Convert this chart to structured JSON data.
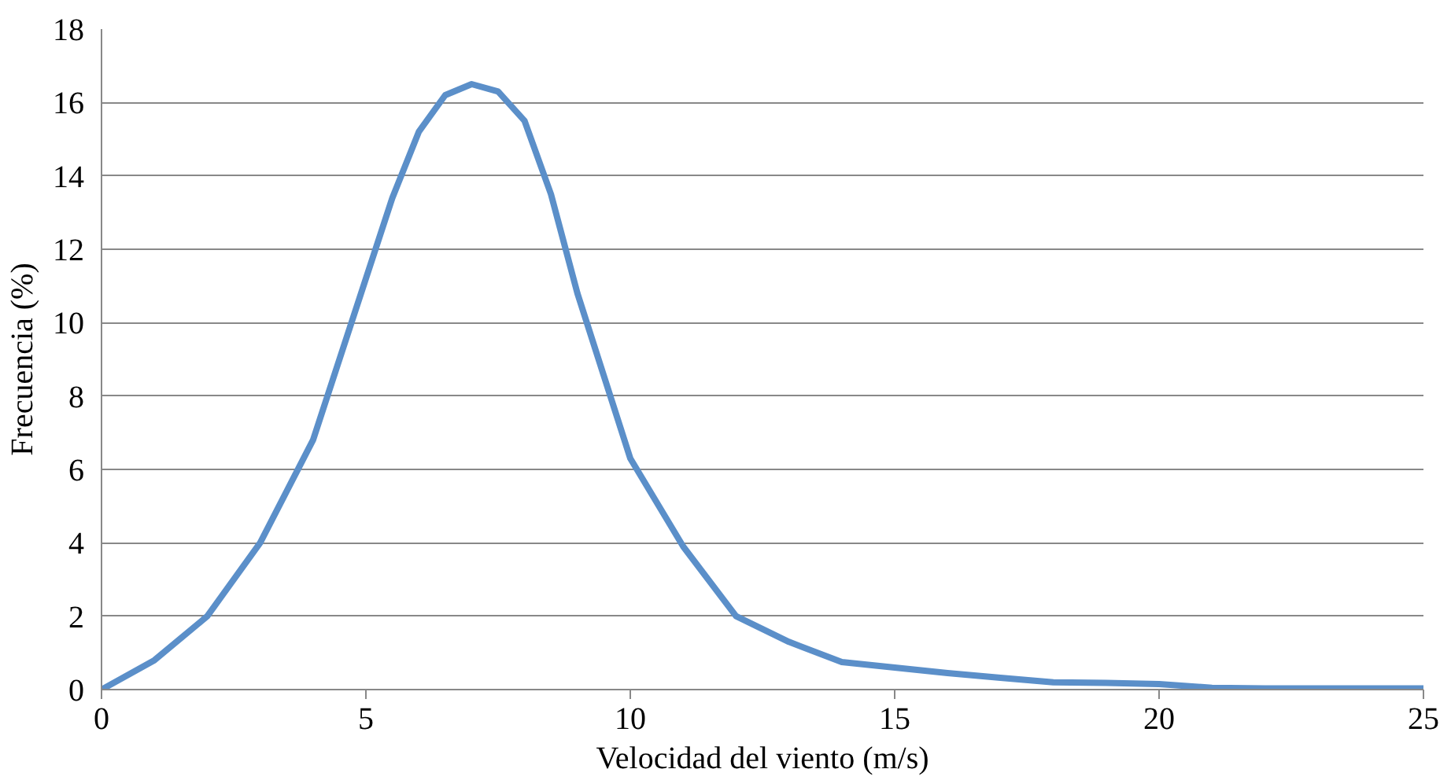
{
  "chart_data": {
    "type": "line",
    "xlabel": "Velocidad del viento (m/s)",
    "ylabel": "Frecuencia (%)",
    "x": [
      0,
      1,
      2,
      3,
      4,
      5,
      5.5,
      6,
      6.5,
      7,
      7.5,
      8,
      8.5,
      9,
      10,
      11,
      12,
      13,
      14,
      15,
      16,
      17,
      18,
      19,
      20,
      21,
      22,
      23,
      24,
      25
    ],
    "series": [
      {
        "color": "#5b8fc9",
        "values": [
          0,
          0.8,
          2.0,
          4.0,
          6.8,
          11.2,
          13.4,
          15.2,
          16.2,
          16.5,
          16.3,
          15.5,
          13.5,
          10.8,
          6.3,
          3.9,
          2.0,
          1.3,
          0.75,
          0.6,
          0.45,
          0.32,
          0.2,
          0.18,
          0.15,
          0.05,
          0.03,
          0.03,
          0.03,
          0.03
        ]
      }
    ],
    "xlim": [
      0,
      25
    ],
    "xticks": [
      0,
      5,
      10,
      15,
      20,
      25
    ],
    "ylim": [
      0,
      18
    ],
    "yticks": [
      0,
      2,
      4,
      6,
      8,
      10,
      12,
      14,
      16,
      18
    ],
    "grid": "y",
    "marker": "none",
    "line_style": "solid"
  }
}
